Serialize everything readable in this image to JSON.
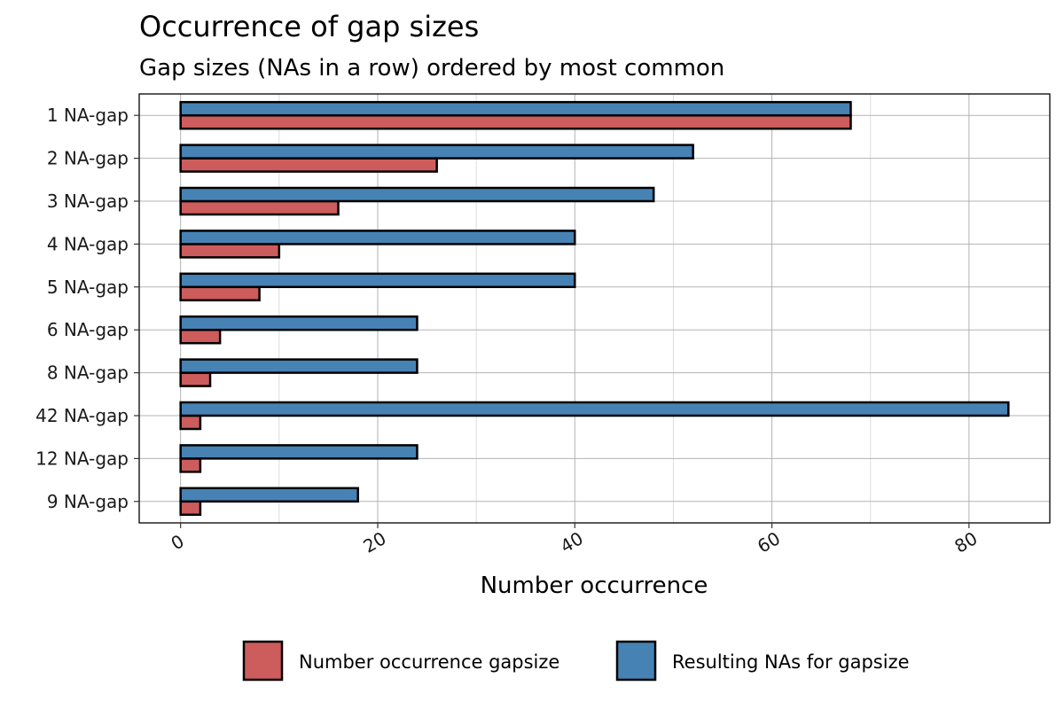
{
  "chart_data": {
    "type": "bar",
    "orientation": "horizontal",
    "title": "Occurrence of gap sizes",
    "subtitle": "Gap sizes (NAs in a row) ordered by most common",
    "xlabel": "Number occurrence",
    "ylabel": "",
    "categories": [
      "1 NA-gap",
      "2 NA-gap",
      "3 NA-gap",
      "4 NA-gap",
      "5 NA-gap",
      "6 NA-gap",
      "8 NA-gap",
      "42 NA-gap",
      "12 NA-gap",
      "9 NA-gap"
    ],
    "series": [
      {
        "name": "Number occurrence gapsize",
        "color": "#cd5c5c",
        "values": [
          68,
          26,
          16,
          10,
          8,
          4,
          3,
          2,
          2,
          2
        ]
      },
      {
        "name": "Resulting NAs for gapsize",
        "color": "#4682b4",
        "values": [
          68,
          52,
          48,
          40,
          40,
          24,
          24,
          84,
          24,
          18
        ]
      }
    ],
    "xlim": [
      -4.2,
      88.2
    ],
    "xticks": [
      "0",
      "20",
      "40",
      "60",
      "80"
    ],
    "xtick_rotation": -30,
    "grid": true,
    "legend_position": "bottom",
    "bar_outline_color": "#000000"
  }
}
